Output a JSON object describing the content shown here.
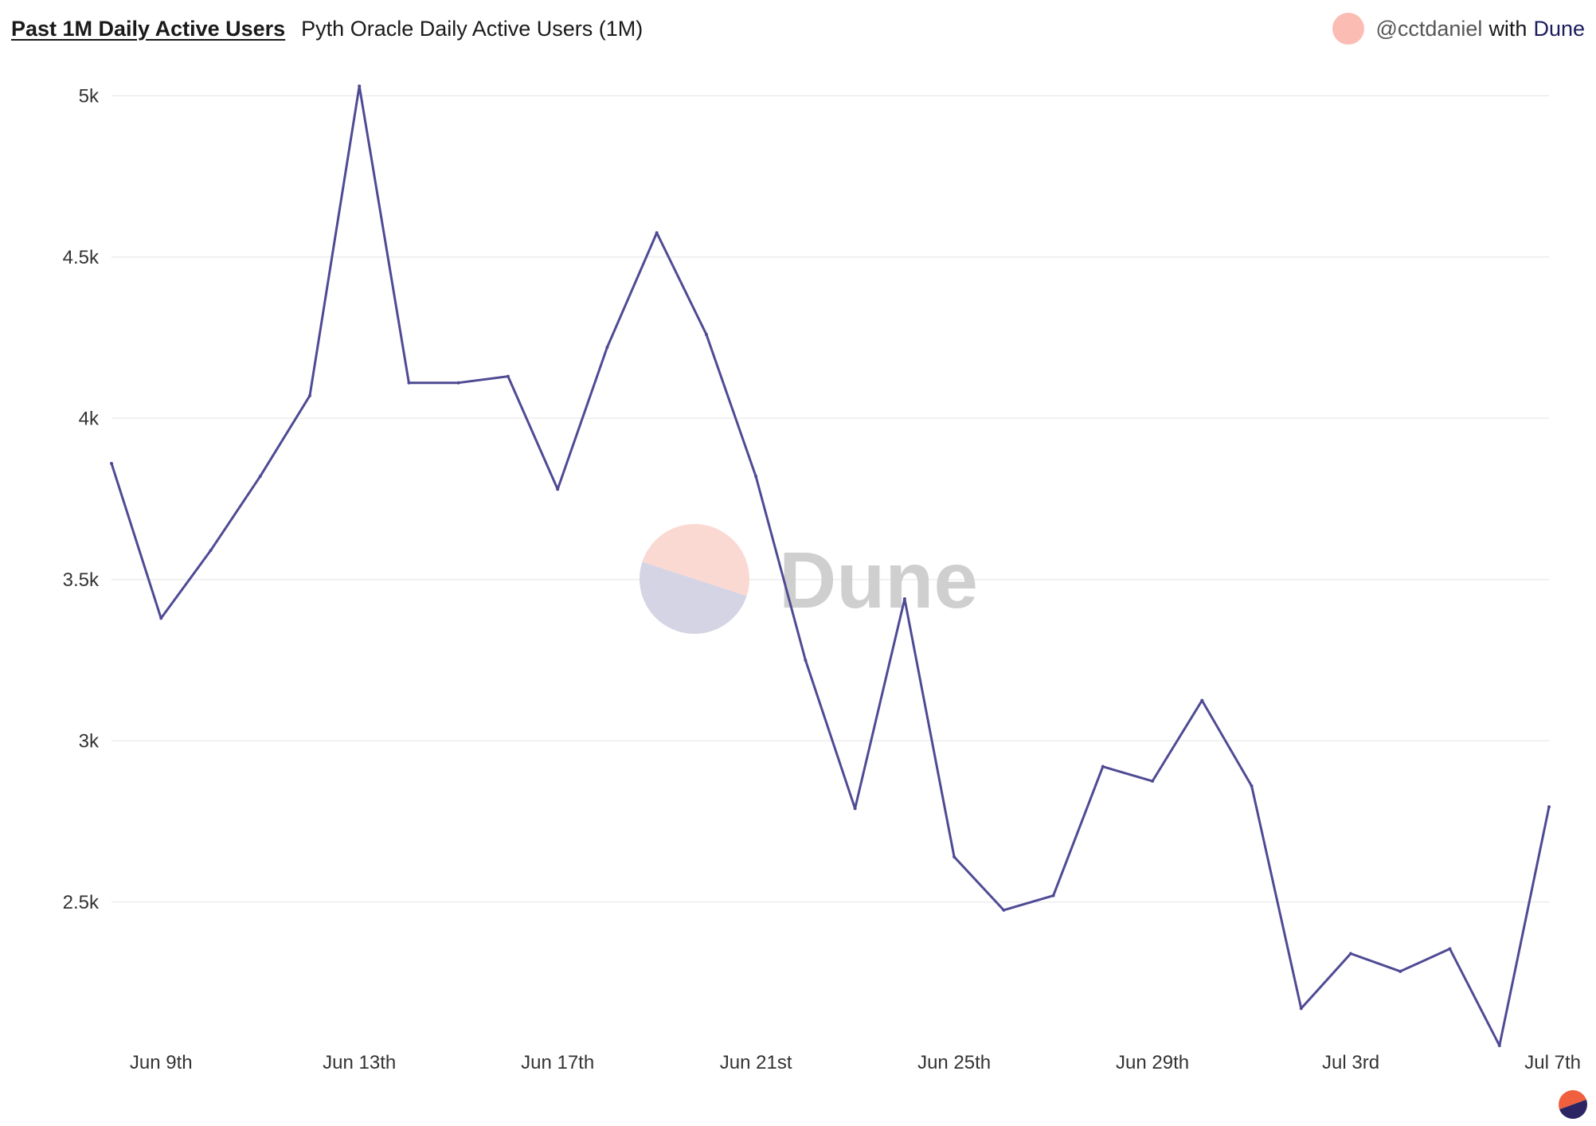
{
  "header": {
    "title": "Past 1M Daily Active Users",
    "subtitle": "Pyth Oracle Daily Active Users (1M)"
  },
  "credit": {
    "author": "@cctdaniel",
    "with": "with",
    "brand": "Dune"
  },
  "watermark": {
    "text": "Dune"
  },
  "colors": {
    "line": "#4f4a94",
    "grid": "#ececec",
    "watermark_pink": "#fbd9d3",
    "watermark_blue": "#d5d4e4",
    "avatar": "#fbbcb4",
    "corner_orange": "#f0603f",
    "corner_navy": "#2b2564"
  },
  "chart_data": {
    "type": "line",
    "x_tick_labels": [
      "Jun 9th",
      "Jun 13th",
      "Jun 17th",
      "Jun 21st",
      "Jun 25th",
      "Jun 29th",
      "Jul 3rd",
      "Jul 7th"
    ],
    "y_tick_labels": [
      "2.5k",
      "3k",
      "3.5k",
      "4k",
      "4.5k",
      "5k"
    ],
    "y_ticks": [
      2500,
      3000,
      3500,
      4000,
      4500,
      5000
    ],
    "ylim": [
      2050,
      5050
    ],
    "xlim": [
      "2024-06-08",
      "2024-07-07"
    ],
    "grid": true,
    "series": [
      {
        "values": [
          {
            "x": "2024-06-08",
            "y": 3860
          },
          {
            "x": "2024-06-09",
            "y": 3380
          },
          {
            "x": "2024-06-10",
            "y": 3590
          },
          {
            "x": "2024-06-11",
            "y": 3820
          },
          {
            "x": "2024-06-12",
            "y": 4070
          },
          {
            "x": "2024-06-13",
            "y": 5030
          },
          {
            "x": "2024-06-14",
            "y": 4110
          },
          {
            "x": "2024-06-15",
            "y": 4110
          },
          {
            "x": "2024-06-16",
            "y": 4130
          },
          {
            "x": "2024-06-17",
            "y": 3780
          },
          {
            "x": "2024-06-18",
            "y": 4220
          },
          {
            "x": "2024-06-19",
            "y": 4575
          },
          {
            "x": "2024-06-20",
            "y": 4260
          },
          {
            "x": "2024-06-21",
            "y": 3820
          },
          {
            "x": "2024-06-22",
            "y": 3250
          },
          {
            "x": "2024-06-23",
            "y": 2790
          },
          {
            "x": "2024-06-24",
            "y": 3440
          },
          {
            "x": "2024-06-25",
            "y": 2640
          },
          {
            "x": "2024-06-26",
            "y": 2475
          },
          {
            "x": "2024-06-27",
            "y": 2520
          },
          {
            "x": "2024-06-28",
            "y": 2920
          },
          {
            "x": "2024-06-29",
            "y": 2875
          },
          {
            "x": "2024-06-30",
            "y": 3125
          },
          {
            "x": "2024-07-01",
            "y": 2860
          },
          {
            "x": "2024-07-02",
            "y": 2170
          },
          {
            "x": "2024-07-03",
            "y": 2340
          },
          {
            "x": "2024-07-04",
            "y": 2285
          },
          {
            "x": "2024-07-05",
            "y": 2355
          },
          {
            "x": "2024-07-06",
            "y": 2055
          },
          {
            "x": "2024-07-07",
            "y": 2795
          }
        ]
      }
    ]
  }
}
